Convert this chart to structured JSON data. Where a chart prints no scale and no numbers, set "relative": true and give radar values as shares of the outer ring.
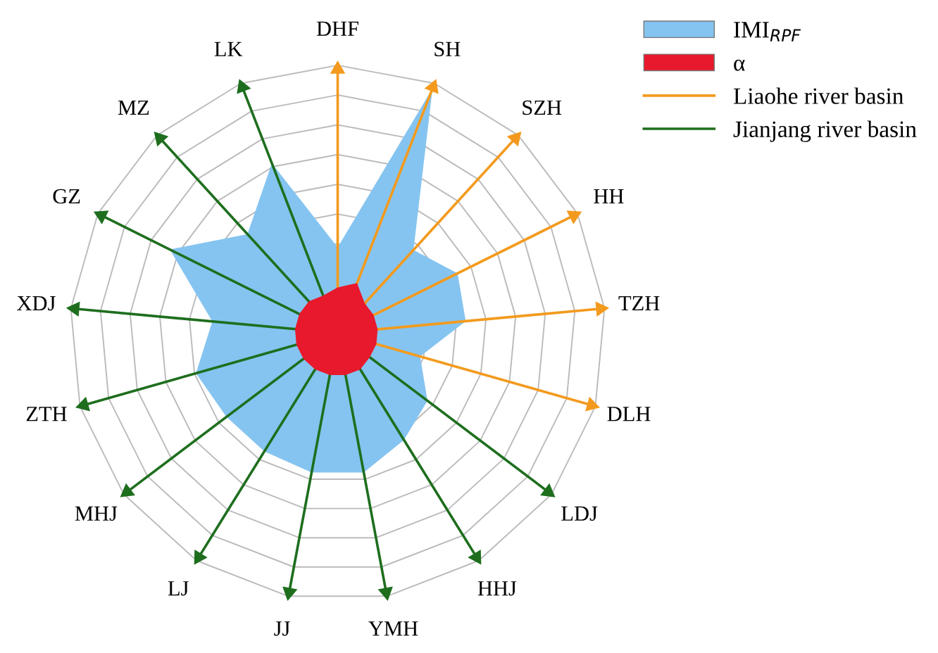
{
  "chart_data": {
    "type": "radar",
    "relative": true,
    "grid": true,
    "legend": "top right",
    "categories": [
      "DHF",
      "SH",
      "SZH",
      "HH",
      "TZH",
      "DLH",
      "LDJ",
      "HHJ",
      "YMH",
      "JJ",
      "LJ",
      "MHJ",
      "ZTH",
      "XDJ",
      "GZ",
      "MZ",
      "LK"
    ],
    "colors": [
      "#f39a1e",
      "#f39a1e",
      "#f39a1e",
      "#f39a1e",
      "#f39a1e",
      "#f39a1e",
      "#1e6e1e",
      "#1e6e1e",
      "#1e6e1e",
      "#1e6e1e",
      "#1e6e1e",
      "#1e6e1e",
      "#1e6e1e",
      "#1e6e1e",
      "#1e6e1e",
      "#1e6e1e",
      "#1e6e1e"
    ],
    "annotations": [
      "Liaohe river basin",
      "Jianjang river basin"
    ],
    "series": [
      {
        "name": "IMI$_{RPF}$",
        "color": "#85c4f0",
        "values": [
          0.32,
          0.98,
          0.42,
          0.5,
          0.48,
          0.32,
          0.42,
          0.47,
          0.53,
          0.53,
          0.52,
          0.52,
          0.55,
          0.47,
          0.7,
          0.5,
          0.68
        ]
      },
      {
        "name": "α",
        "color": "#e8192c",
        "values": [
          0.17,
          0.2,
          0.15,
          0.15,
          0.15,
          0.15,
          0.15,
          0.16,
          0.16,
          0.16,
          0.16,
          0.16,
          0.16,
          0.16,
          0.16,
          0.16,
          0.15
        ]
      }
    ]
  }
}
